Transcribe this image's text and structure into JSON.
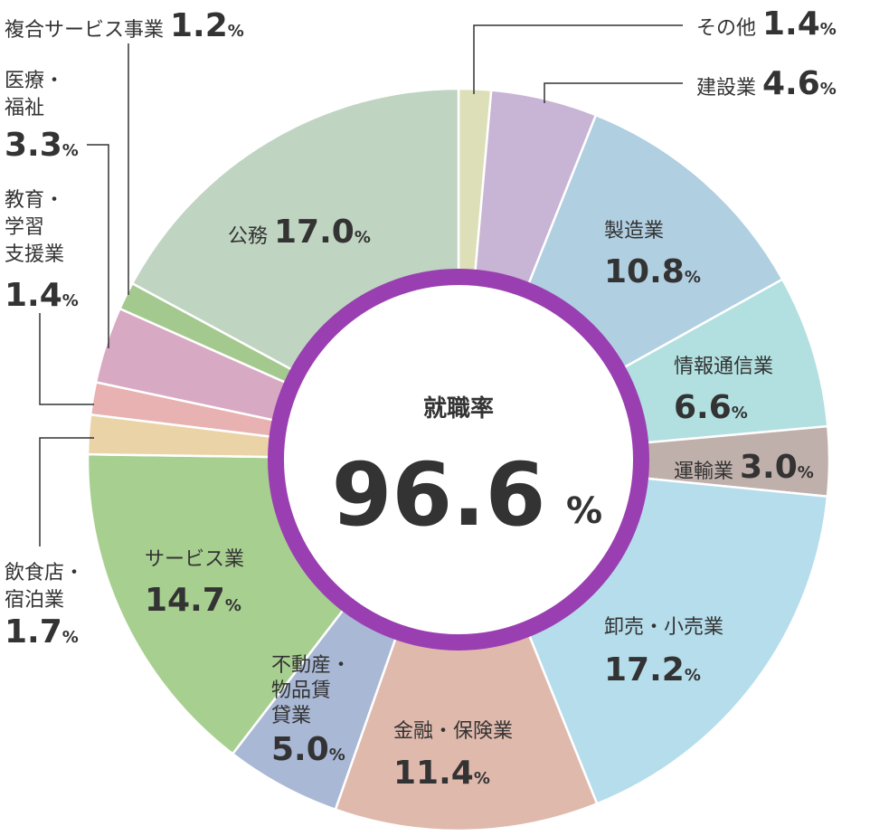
{
  "chart_data": {
    "type": "pie",
    "center": {
      "title": "就職率",
      "value": "96.6",
      "unit": "%"
    },
    "unit": "%",
    "slices": [
      {
        "name": "その他",
        "value": 1.4,
        "color": "#dcdfb7"
      },
      {
        "name": "建設業",
        "value": 4.6,
        "color": "#c8b4d4"
      },
      {
        "name": "製造業",
        "value": 10.8,
        "color": "#b0cfe1"
      },
      {
        "name": "情報通信業",
        "value": 6.6,
        "color": "#b2dfdf"
      },
      {
        "name": "運輸業",
        "value": 3.0,
        "color": "#c0b0ab"
      },
      {
        "name": "卸売・小売業",
        "value": 17.2,
        "color": "#b5ddeb"
      },
      {
        "name": "金融・保険業",
        "value": 11.4,
        "color": "#e0b9ad"
      },
      {
        "name": "不動産・物品賃貸業",
        "value": 5.0,
        "color": "#a9b8d5"
      },
      {
        "name": "サービス業",
        "value": 14.7,
        "color": "#a7cf90"
      },
      {
        "name": "飲食店・宿泊業",
        "value": 1.7,
        "color": "#ebd3a8"
      },
      {
        "name": "教育・学習支援業",
        "value": 1.4,
        "color": "#e7b2b1"
      },
      {
        "name": "医療・福祉",
        "value": 3.3,
        "color": "#d8a9c3"
      },
      {
        "name": "複合サービス事業",
        "value": 1.2,
        "color": "#a3c98e"
      },
      {
        "name": "公務",
        "value": 17.0,
        "color": "#bfd4c1"
      }
    ],
    "ring_color": "#9a3fb1"
  }
}
